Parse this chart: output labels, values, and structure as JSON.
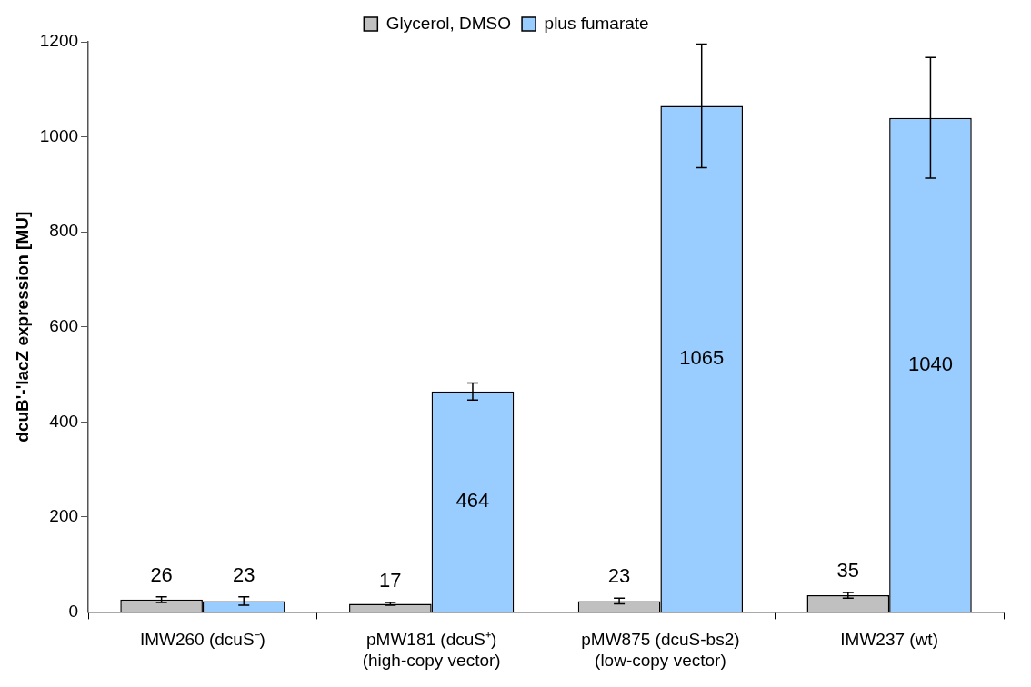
{
  "chart_data": {
    "type": "bar",
    "ylabel": "dcuB'-'lacZ expression [MU]",
    "categories": [
      "IMW260 (dcuS⁻)",
      "pMW181 (dcuS⁺)\n(high-copy vector)",
      "pMW875 (dcuS-bs2)\n(low-copy vector)",
      "IMW237 (wt)"
    ],
    "series": [
      {
        "name": "Glycerol, DMSO",
        "color": "#c0c0c0",
        "values": [
          26,
          17,
          23,
          35
        ],
        "errors": [
          6,
          3,
          6,
          6
        ]
      },
      {
        "name": "plus fumarate",
        "color": "#99ccff",
        "values": [
          23,
          464,
          1065,
          1040
        ],
        "errors": [
          9,
          18,
          130,
          127
        ]
      }
    ],
    "ylim": [
      0,
      1200
    ],
    "yticks": [
      0,
      200,
      400,
      600,
      800,
      1000,
      1200
    ],
    "data_labels": true,
    "legend": "top",
    "grid": false
  }
}
